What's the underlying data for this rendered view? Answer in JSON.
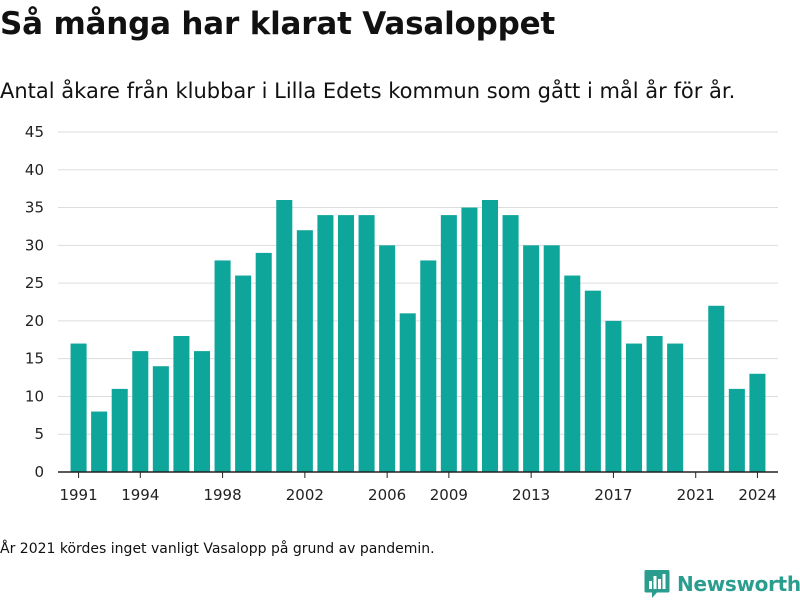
{
  "chart_data": {
    "type": "bar",
    "title": "Så många har klarat Vasaloppet",
    "subtitle": "Antal åkare från klubbar i Lilla Edets kommun som gått i mål år för år.",
    "x": [
      1991,
      1992,
      1993,
      1994,
      1995,
      1996,
      1997,
      1998,
      1999,
      2000,
      2001,
      2002,
      2003,
      2004,
      2005,
      2006,
      2007,
      2008,
      2009,
      2010,
      2011,
      2012,
      2013,
      2014,
      2015,
      2016,
      2017,
      2018,
      2019,
      2020,
      2021,
      2022,
      2023,
      2024
    ],
    "values": [
      17,
      8,
      11,
      16,
      14,
      18,
      16,
      28,
      26,
      29,
      36,
      32,
      34,
      34,
      34,
      30,
      21,
      28,
      34,
      35,
      36,
      34,
      30,
      30,
      26,
      24,
      20,
      17,
      18,
      17,
      0,
      22,
      11,
      13
    ],
    "x_tick_labels": [
      "1991",
      "1994",
      "1998",
      "2002",
      "2006",
      "2009",
      "2013",
      "2017",
      "2021",
      "2024"
    ],
    "x_tick_values": [
      1991,
      1994,
      1998,
      2002,
      2006,
      2009,
      2013,
      2017,
      2021,
      2024
    ],
    "y_ticks": [
      0,
      5,
      10,
      15,
      20,
      25,
      30,
      35,
      40,
      45
    ],
    "ylim": [
      0,
      45
    ],
    "grid": true,
    "xlabel": "",
    "ylabel": "",
    "footnote": "År 2021 kördes inget vanligt Vasalopp på grund av pandemin.",
    "bar_color": "#0ea59b"
  },
  "brand": {
    "name": "Newsworthy",
    "logo_icon": "bar-chart-logo-icon",
    "color": "#2a9d8f"
  }
}
